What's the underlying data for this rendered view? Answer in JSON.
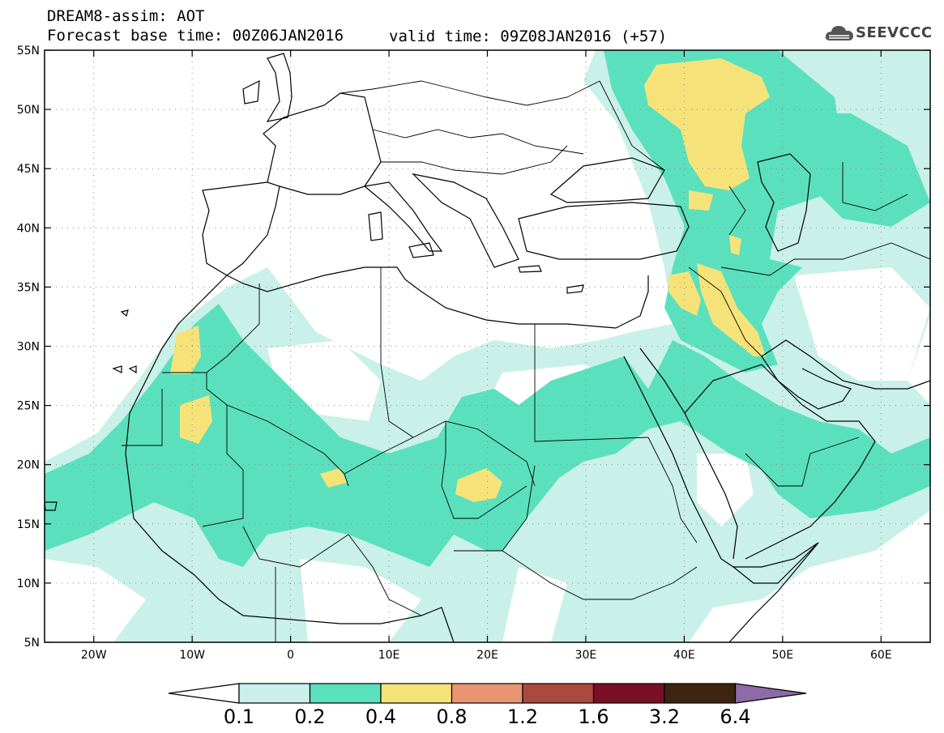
{
  "header": {
    "title_line1": "DREAM8-assim: AOT",
    "title_line2": "Forecast base time: 00Z06JAN2016",
    "valid_time": "valid time: 09Z08JAN2016 (+57)",
    "logo_text": "SEEVCCC"
  },
  "map": {
    "lon_range": [
      -25,
      65
    ],
    "lat_range": [
      5,
      55
    ],
    "lat_labels": [
      "55N",
      "50N",
      "45N",
      "40N",
      "35N",
      "30N",
      "25N",
      "20N",
      "15N",
      "10N",
      "5N"
    ],
    "lon_labels": [
      "20W",
      "10W",
      "0",
      "10E",
      "20E",
      "30E",
      "40E",
      "50E",
      "60E"
    ],
    "grid": "dotted"
  },
  "legend": {
    "colors": [
      "#ffffff",
      "#c9f0e9",
      "#5be0bd",
      "#f5e37a",
      "#e99472",
      "#a84a3e",
      "#7a0f25",
      "#3d2511",
      "#8d6aa8"
    ],
    "labels": [
      "0.1",
      "0.2",
      "0.4",
      "0.8",
      "1.2",
      "1.6",
      "3.2",
      "6.4"
    ]
  }
}
